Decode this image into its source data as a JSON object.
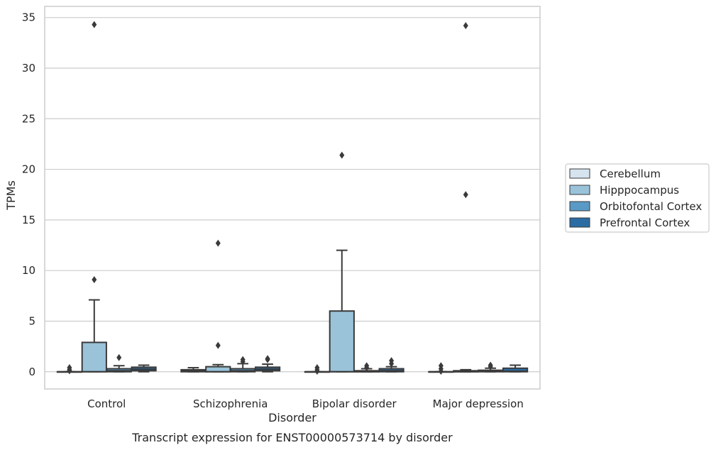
{
  "chart_data": {
    "type": "box",
    "title": "",
    "caption": "Transcript expression for ENST00000573714 by disorder",
    "xlabel": "Disorder",
    "ylabel": "TPMs",
    "ylim": [
      -1.7,
      36.1
    ],
    "yticks": [
      0,
      5,
      10,
      15,
      20,
      25,
      30,
      35
    ],
    "grid": "horizontal",
    "legend_position": "right",
    "categories": [
      "Control",
      "Schizophrenia",
      "Bipolar disorder",
      "Major depression"
    ],
    "series": [
      {
        "name": "Cerebellum",
        "color": "#d6e4f0",
        "boxes": [
          {
            "q1": 0,
            "median": 0,
            "q3": 0,
            "whisker_low": 0,
            "whisker_high": 0,
            "outliers": [
              0.4,
              0.2,
              0.1
            ]
          },
          {
            "q1": 0,
            "median": 0.1,
            "q3": 0.2,
            "whisker_low": 0,
            "whisker_high": 0.4,
            "outliers": []
          },
          {
            "q1": 0,
            "median": 0,
            "q3": 0,
            "whisker_low": 0,
            "whisker_high": 0,
            "outliers": [
              0.4,
              0.2,
              0.05
            ]
          },
          {
            "q1": 0,
            "median": 0,
            "q3": 0,
            "whisker_low": 0,
            "whisker_high": 0,
            "outliers": [
              0.6,
              0.3,
              0.05
            ]
          }
        ]
      },
      {
        "name": "Hipppocampus",
        "color": "#9ac3da",
        "boxes": [
          {
            "q1": 0,
            "median": 0,
            "q3": 2.9,
            "whisker_low": 0,
            "whisker_high": 7.1,
            "outliers": [
              9.1,
              34.3
            ]
          },
          {
            "q1": 0,
            "median": 0,
            "q3": 0.5,
            "whisker_low": 0,
            "whisker_high": 0.7,
            "outliers": [
              2.6,
              12.7
            ]
          },
          {
            "q1": 0,
            "median": 0,
            "q3": 6.0,
            "whisker_low": 0,
            "whisker_high": 12.0,
            "outliers": [
              21.4
            ]
          },
          {
            "q1": 0,
            "median": 0,
            "q3": 0.1,
            "whisker_low": 0,
            "whisker_high": 0.2,
            "outliers": [
              17.5,
              34.2
            ]
          }
        ]
      },
      {
        "name": "Orbitofontal Cortex",
        "color": "#5a9ac6",
        "boxes": [
          {
            "q1": 0,
            "median": 0.1,
            "q3": 0.3,
            "whisker_low": 0,
            "whisker_high": 0.6,
            "outliers": [
              1.4
            ]
          },
          {
            "q1": 0,
            "median": 0.1,
            "q3": 0.3,
            "whisker_low": 0,
            "whisker_high": 0.8,
            "outliers": [
              1.2,
              1.0
            ]
          },
          {
            "q1": 0,
            "median": 0,
            "q3": 0.1,
            "whisker_low": 0,
            "whisker_high": 0.3,
            "outliers": [
              0.6,
              0.4
            ]
          },
          {
            "q1": 0,
            "median": 0.05,
            "q3": 0.15,
            "whisker_low": 0,
            "whisker_high": 0.35,
            "outliers": [
              0.65,
              0.5
            ]
          }
        ]
      },
      {
        "name": "Prefrontal Cortex",
        "color": "#2b6ca3",
        "boxes": [
          {
            "q1": 0.1,
            "median": 0.25,
            "q3": 0.45,
            "whisker_low": 0,
            "whisker_high": 0.65,
            "outliers": []
          },
          {
            "q1": 0.1,
            "median": 0.25,
            "q3": 0.45,
            "whisker_low": 0,
            "whisker_high": 0.75,
            "outliers": [
              1.3,
              1.2
            ]
          },
          {
            "q1": 0,
            "median": 0.1,
            "q3": 0.3,
            "whisker_low": 0,
            "whisker_high": 0.5,
            "outliers": [
              1.1,
              0.8
            ]
          },
          {
            "q1": 0,
            "median": 0.05,
            "q3": 0.35,
            "whisker_low": 0,
            "whisker_high": 0.65,
            "outliers": []
          }
        ]
      }
    ]
  }
}
